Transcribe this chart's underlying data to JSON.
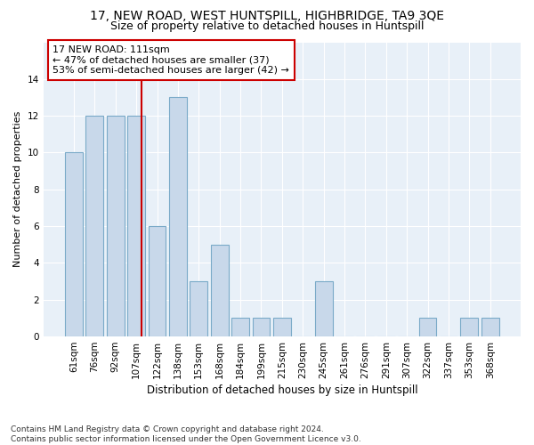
{
  "title1": "17, NEW ROAD, WEST HUNTSPILL, HIGHBRIDGE, TA9 3QE",
  "title2": "Size of property relative to detached houses in Huntspill",
  "xlabel": "Distribution of detached houses by size in Huntspill",
  "ylabel": "Number of detached properties",
  "categories": [
    "61sqm",
    "76sqm",
    "92sqm",
    "107sqm",
    "122sqm",
    "138sqm",
    "153sqm",
    "168sqm",
    "184sqm",
    "199sqm",
    "215sqm",
    "230sqm",
    "245sqm",
    "261sqm",
    "276sqm",
    "291sqm",
    "307sqm",
    "322sqm",
    "337sqm",
    "353sqm",
    "368sqm"
  ],
  "values": [
    10,
    12,
    12,
    12,
    6,
    13,
    3,
    5,
    1,
    1,
    1,
    0,
    3,
    0,
    0,
    0,
    0,
    1,
    0,
    1,
    1
  ],
  "bar_color": "#c8d8ea",
  "bar_edge_color": "#7aaac8",
  "annotation_text_line1": "17 NEW ROAD: 111sqm",
  "annotation_text_line2": "← 47% of detached houses are smaller (37)",
  "annotation_text_line3": "53% of semi-detached houses are larger (42) →",
  "annotation_box_color": "white",
  "annotation_box_edge_color": "#cc0000",
  "vertical_line_color": "#cc0000",
  "ylim": [
    0,
    16
  ],
  "yticks": [
    0,
    2,
    4,
    6,
    8,
    10,
    12,
    14,
    16
  ],
  "footer1": "Contains HM Land Registry data © Crown copyright and database right 2024.",
  "footer2": "Contains public sector information licensed under the Open Government Licence v3.0.",
  "bg_color": "#ffffff",
  "plot_bg_color": "#e8f0f8",
  "grid_color": "#ffffff",
  "title1_fontsize": 10,
  "title2_fontsize": 9,
  "xlabel_fontsize": 8.5,
  "ylabel_fontsize": 8,
  "tick_fontsize": 7.5,
  "footer_fontsize": 6.5,
  "ann_fontsize": 8
}
